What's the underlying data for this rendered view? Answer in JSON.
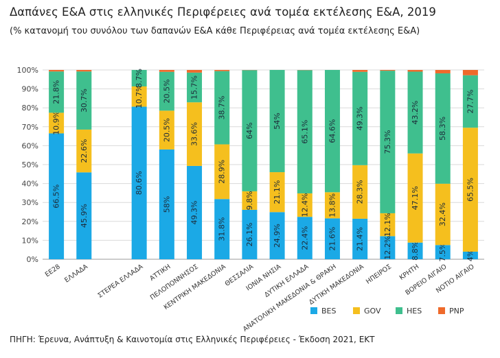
{
  "header": {
    "title": "Δαπάνες Ε&Α στις ελληνικές Περιφέρειες ανά τομέα εκτέλεσης Ε&Α, 2019",
    "subtitle": "(% κατανομή του συνόλου των δαπανών Ε&Α κάθε Περιφέρειας ανά τομέα εκτέλεσης Ε&Α)"
  },
  "footer": {
    "source": "ΠΗΓΗ: Έρευνα, Ανάπτυξη & Καινοτομία στις Ελληνικές Περιφέρειες - Έκδοση 2021, ΕΚΤ"
  },
  "chart_data": {
    "type": "bar",
    "stacked": true,
    "ylim": [
      0,
      100
    ],
    "yticks": [
      "0%",
      "10%",
      "20%",
      "30%",
      "40%",
      "50%",
      "60%",
      "70%",
      "80%",
      "90%",
      "100%"
    ],
    "grid": true,
    "legend_position": "bottom-right",
    "categories": [
      "ΕΕ28",
      "ΕΛΛΑΔΑ",
      "",
      "ΣΤΕΡΕΑ ΕΛΛΑΔΑ",
      "ΑΤΤΙΚΗ",
      "ΠΕΛΟΠΟΝΝΗΣΟΣ",
      "ΚΕΝΤΡΙΚΗ ΜΑΚΕΔΟΝΙΑ",
      "ΘΕΣΣΑΛΙΑ",
      "ΙΟΝΙΑ ΝΗΣΙΑ",
      "ΔΥΤΙΚΗ ΕΛΛΑΔΑ",
      "ΑΝΑΤΟΛΙΚΗ ΜΑΚΕΔΟΝΙΑ & ΘΡΑΚΗ",
      "ΔΥΤΙΚΗ ΜΑΚΕΔΟΝΙΑ",
      "ΗΠΕΙΡΟΣ",
      "ΚΡΗΤΗ",
      "ΒΟΡΕΙΟ ΑΙΓΑΙΟ",
      "ΝΟΤΙΟ ΑΙΓΑΙΟ"
    ],
    "series": [
      {
        "name": "BES",
        "color": "#1ba9e6",
        "values": [
          66.5,
          45.9,
          null,
          80.6,
          58,
          49.3,
          31.8,
          26.1,
          24.9,
          22.4,
          21.6,
          21.4,
          12.2,
          8.8,
          7.5,
          4
        ]
      },
      {
        "name": "GOV",
        "color": "#f5bf1e",
        "values": [
          10.9,
          22.6,
          null,
          10.7,
          20.5,
          33.6,
          28.9,
          9.8,
          21.1,
          12.4,
          13.8,
          28.3,
          12.1,
          47.1,
          32.4,
          65.5
        ]
      },
      {
        "name": "HES",
        "color": "#3fbf8e",
        "values": [
          21.8,
          30.7,
          null,
          8.7,
          20.5,
          15.7,
          38.7,
          64,
          54,
          65.1,
          64.6,
          49.3,
          75.3,
          43.2,
          58.3,
          27.7
        ]
      },
      {
        "name": "PNP",
        "color": "#ef6a2b",
        "values": [
          0.8,
          0.8,
          null,
          0,
          1,
          1.4,
          0.6,
          0.1,
          0,
          0.1,
          0,
          1,
          0.4,
          0.9,
          1.8,
          2.8
        ]
      }
    ],
    "data_labels": [
      [
        "66.5%",
        "10.9%",
        "21.8%",
        null
      ],
      [
        "45.9%",
        "22.6%",
        "30.7%",
        null
      ],
      [
        null,
        null,
        null,
        null
      ],
      [
        "80.6%",
        "10.7%",
        "8.7%",
        null
      ],
      [
        "58%",
        "20.5%",
        "20.5%",
        null
      ],
      [
        "49.3%",
        "33.6%",
        "15.7%",
        null
      ],
      [
        "31.8%",
        "28.9%",
        "38.7%",
        null
      ],
      [
        "26.1%",
        "9.8%",
        "64%",
        null
      ],
      [
        "24.9%",
        "21.1%",
        "54%",
        null
      ],
      [
        "22.4%",
        "12.4%",
        "65.1%",
        null
      ],
      [
        "21.6%",
        "13.8%",
        "64.6%",
        null
      ],
      [
        "21.4%",
        "28.3%",
        "49.3%",
        null
      ],
      [
        "12.2%",
        "12.1%",
        "75.3%",
        null
      ],
      [
        "8.8%",
        "47.1%",
        "43.2%",
        null
      ],
      [
        "7.5%",
        "32.4%",
        "58.3%",
        null
      ],
      [
        "4%",
        "65.5%",
        "27.7%",
        null
      ]
    ]
  }
}
